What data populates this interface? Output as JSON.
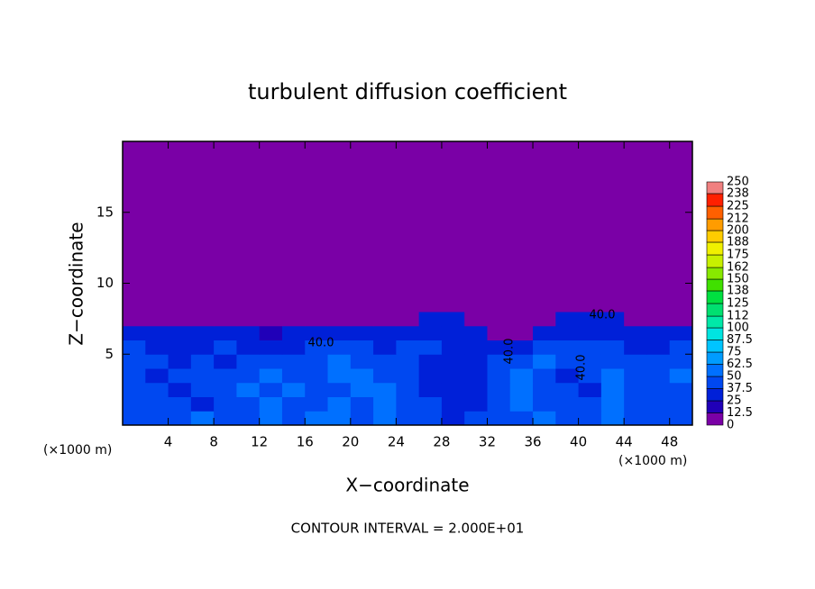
{
  "chart_data": {
    "type": "heatmap",
    "title": "turbulent diffusion coefficient",
    "x_label": "X−coordinate",
    "y_label": "Z−coordinate",
    "x_unit_left": "(×1000 m)",
    "x_unit_right": "(×1000 m)",
    "footer": "CONTOUR INTERVAL = 2.000E+01",
    "contour_labels": [
      "40.0",
      "40.0",
      "40.0",
      "40.0"
    ],
    "xlim": [
      0,
      50
    ],
    "xticks": [
      4,
      8,
      12,
      16,
      20,
      24,
      28,
      32,
      36,
      40,
      44,
      48
    ],
    "ylim": [
      0,
      20
    ],
    "yticks": [
      5,
      10,
      15
    ],
    "x_edges": [
      0,
      2,
      4,
      6,
      8,
      10,
      12,
      14,
      16,
      18,
      20,
      22,
      24,
      26,
      28,
      30,
      32,
      34,
      36,
      38,
      40,
      42,
      44,
      46,
      48,
      50
    ],
    "z_edges": [
      0,
      1,
      2,
      3,
      4,
      5,
      6,
      7,
      8,
      20
    ],
    "values": [
      [
        45,
        40,
        45,
        50,
        40,
        45,
        50,
        45,
        50,
        55,
        45,
        50,
        45,
        40,
        35,
        40,
        45,
        45,
        50,
        45,
        40,
        55,
        45,
        40,
        45
      ],
      [
        40,
        45,
        40,
        35,
        45,
        40,
        50,
        45,
        45,
        50,
        40,
        55,
        45,
        40,
        35,
        35,
        40,
        50,
        45,
        40,
        40,
        60,
        45,
        40,
        45
      ],
      [
        45,
        40,
        35,
        40,
        45,
        50,
        45,
        50,
        40,
        45,
        55,
        50,
        40,
        35,
        30,
        35,
        45,
        55,
        40,
        40,
        35,
        55,
        40,
        45,
        45
      ],
      [
        40,
        35,
        40,
        45,
        40,
        45,
        50,
        45,
        40,
        50,
        55,
        45,
        45,
        35,
        30,
        35,
        40,
        50,
        45,
        35,
        40,
        50,
        40,
        45,
        50
      ],
      [
        45,
        40,
        35,
        40,
        35,
        40,
        45,
        40,
        45,
        50,
        45,
        40,
        45,
        35,
        35,
        35,
        40,
        45,
        50,
        40,
        40,
        45,
        45,
        40,
        45
      ],
      [
        40,
        35,
        30,
        35,
        40,
        35,
        30,
        35,
        40,
        45,
        40,
        35,
        40,
        40,
        35,
        35,
        25,
        30,
        45,
        40,
        40,
        45,
        35,
        30,
        40
      ],
      [
        35,
        30,
        25,
        30,
        30,
        25,
        20,
        25,
        30,
        35,
        30,
        30,
        35,
        35,
        30,
        25,
        0,
        0,
        30,
        35,
        35,
        35,
        30,
        25,
        30
      ],
      [
        0,
        0,
        0,
        0,
        0,
        0,
        0,
        0,
        0,
        0,
        0,
        0,
        0,
        35,
        30,
        0,
        0,
        0,
        0,
        30,
        30,
        25,
        0,
        0,
        0
      ],
      [
        0,
        0,
        0,
        0,
        0,
        0,
        0,
        0,
        0,
        0,
        0,
        0,
        0,
        0,
        0,
        0,
        0,
        0,
        0,
        0,
        0,
        0,
        0,
        0,
        0
      ]
    ],
    "levels": [
      0,
      12.5,
      25,
      37.5,
      50,
      62.5,
      75,
      87.5,
      100,
      112,
      125,
      138,
      150,
      162,
      175,
      188,
      200,
      212,
      225,
      238,
      250
    ],
    "colors": [
      "#7a00a6",
      "#2000b8",
      "#0020d8",
      "#0048f0",
      "#0070ff",
      "#009cff",
      "#00c4ff",
      "#00e4e0",
      "#00e8a8",
      "#00e070",
      "#00e040",
      "#40e000",
      "#88e800",
      "#c8f000",
      "#f0f000",
      "#ffcc00",
      "#ff9c00",
      "#ff6000",
      "#ff2000",
      "#f08080"
    ]
  }
}
